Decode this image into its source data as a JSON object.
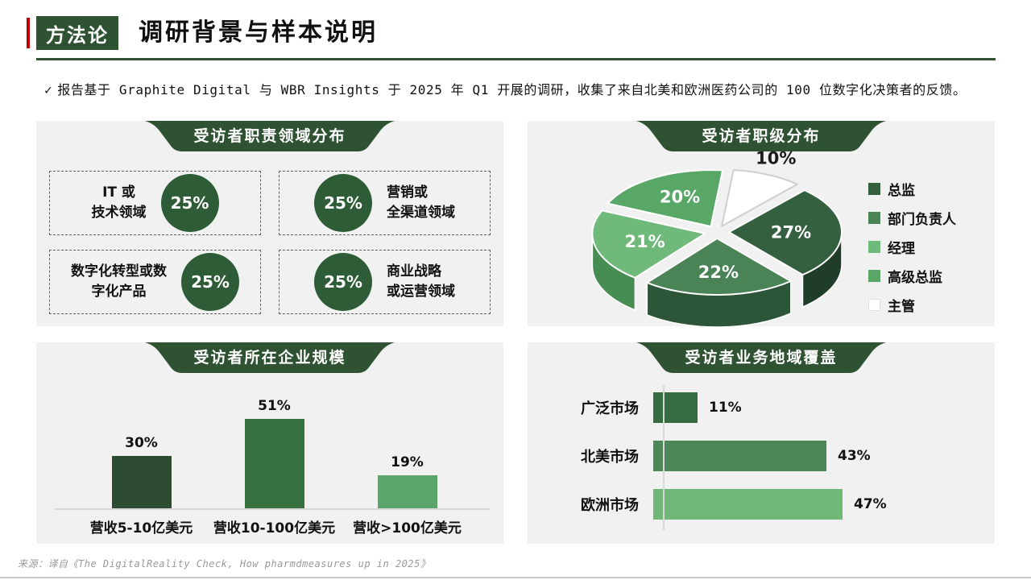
{
  "slide": {
    "badge": "方法论",
    "title": "调研背景与样本说明",
    "intro_check": "✓",
    "intro_text": "报告基于 Graphite Digital 与 WBR Insights 于 2025 年 Q1 开展的调研，收集了来自北美和欧洲医药公司的 100 位数字化决策者的反馈。",
    "source": "来源：译自《The DigitalReality Check, How pharmdmeasures up in 2025》"
  },
  "colors": {
    "primary_green": "#2F5233",
    "accent_red": "#C00000",
    "panel_bg": "#F1F1F1",
    "baseline_gray": "#D9D9D9",
    "source_gray": "#9A9A9A"
  },
  "panels": {
    "roles": {
      "circle_color": "#2E5C36",
      "items": [
        {
          "label": "IT 或\n技术领域",
          "value": "25%"
        },
        {
          "label": "营销或\n全渠道领域",
          "value": "25%"
        },
        {
          "label": "数字化转型或数\n字化产品",
          "value": "25%"
        },
        {
          "label": "商业战略\n或运营领域",
          "value": "25%"
        }
      ]
    }
  },
  "chart_data": [
    {
      "type": "table",
      "title": "受访者职责领域分布",
      "categories": [
        "IT 或技术领域",
        "营销或全渠道领域",
        "数字化转型或数字化产品",
        "商业战略或运营领域"
      ],
      "values": [
        25,
        25,
        25,
        25
      ],
      "value_suffix": "%"
    },
    {
      "type": "pie",
      "title": "受访者职级分布",
      "effect": "3d-exploded",
      "start_angle_deg": 6,
      "legend_position": "right",
      "value_suffix": "%",
      "slices": [
        {
          "label": "总监",
          "value": 27,
          "color": "#35603F",
          "side_color": "#1F3D29",
          "label_color": "#FFFFFF"
        },
        {
          "label": "部门负责人",
          "value": 22,
          "color": "#4A8356",
          "side_color": "#2D5537",
          "label_color": "#FFFFFF"
        },
        {
          "label": "经理",
          "value": 21,
          "color": "#6FB97A",
          "side_color": "#478C52",
          "label_color": "#FFFFFF"
        },
        {
          "label": "高级总监",
          "value": 20,
          "color": "#58A766",
          "side_color": "#3A7846",
          "label_color": "#FFFFFF"
        },
        {
          "label": "主管",
          "value": 10,
          "color": "#FFFFFF",
          "side_color": "#D8D8D8",
          "label_color": "#1A1A1A",
          "label_outside": true
        }
      ],
      "draw_order": [
        4,
        0,
        1,
        2,
        3
      ]
    },
    {
      "type": "bar",
      "title": "受访者所在企业规模",
      "categories": [
        "营收5-10亿美元",
        "营收10-100亿美元",
        "营收>100亿美元"
      ],
      "values": [
        30,
        51,
        19
      ],
      "colors": [
        "#2C4B30",
        "#37703F",
        "#5CA56A"
      ],
      "value_suffix": "%",
      "ylim": [
        0,
        60
      ],
      "grid": false
    },
    {
      "type": "hbar",
      "title": "受访者业务地域覆盖",
      "categories": [
        "广泛市场",
        "北美市场",
        "欧洲市场"
      ],
      "values": [
        11,
        43,
        47
      ],
      "colors": [
        "#376B41",
        "#4C8757",
        "#6FB878"
      ],
      "value_suffix": "%",
      "xlim": [
        0,
        50
      ],
      "grid": false
    }
  ]
}
